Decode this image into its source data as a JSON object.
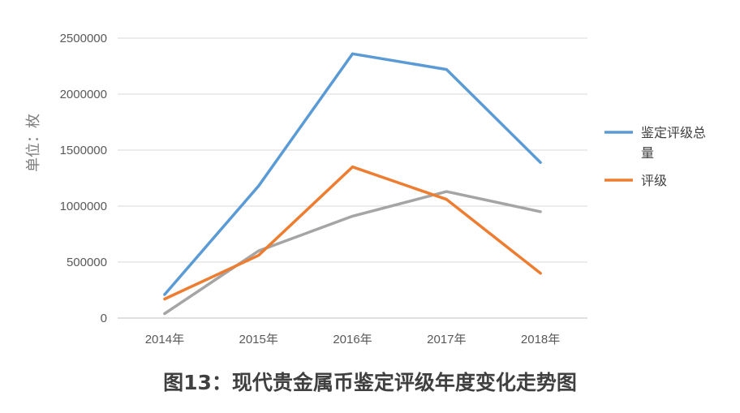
{
  "chart_data": {
    "type": "line",
    "title": "图13：现代贵金属币鉴定评级年度变化走势图",
    "xlabel": "",
    "ylabel": "单位：枚",
    "categories": [
      "2014年",
      "2015年",
      "2016年",
      "2017年",
      "2018年"
    ],
    "ylim": [
      0,
      2500000
    ],
    "yticks": [
      0,
      500000,
      1000000,
      1500000,
      2000000,
      2500000
    ],
    "grid": true,
    "legend_position": "right",
    "series": [
      {
        "name": "鉴定评级总量",
        "color": "#5b9bd5",
        "values": [
          210000,
          1180000,
          2360000,
          2220000,
          1390000
        ]
      },
      {
        "name": "评级",
        "color": "#ed7d31",
        "values": [
          170000,
          560000,
          1350000,
          1060000,
          400000
        ]
      },
      {
        "name": "",
        "color": "#a5a5a5",
        "values": [
          40000,
          600000,
          910000,
          1130000,
          950000
        ]
      }
    ]
  }
}
